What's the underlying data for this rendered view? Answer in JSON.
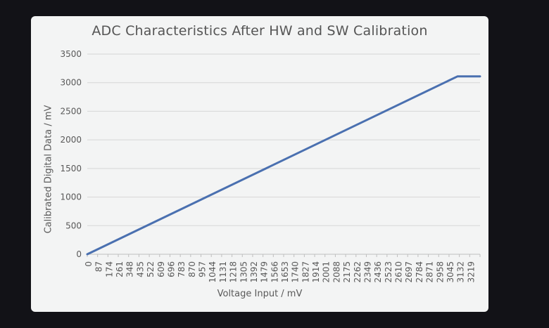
{
  "chart_data": {
    "type": "line",
    "title": "ADC Characteristics After HW and SW Calibration",
    "xlabel": "Voltage Input / mV",
    "ylabel": "Calibrated Digital Data / mV",
    "x_tick_labels": [
      "0",
      "87",
      "174",
      "261",
      "348",
      "435",
      "522",
      "609",
      "696",
      "783",
      "870",
      "957",
      "1044",
      "1131",
      "1218",
      "1305",
      "1392",
      "1479",
      "1566",
      "1653",
      "1740",
      "1827",
      "1914",
      "2001",
      "2088",
      "2175",
      "2262",
      "2349",
      "2436",
      "2523",
      "2610",
      "2697",
      "2784",
      "2871",
      "2958",
      "3045",
      "3132",
      "3219"
    ],
    "y_ticks": [
      0,
      500,
      1000,
      1500,
      2000,
      2500,
      3000,
      3500
    ],
    "xlim": [
      0,
      3300
    ],
    "ylim": [
      0,
      3500
    ],
    "grid": true,
    "series": [
      {
        "color": "#4a70b0",
        "points": [
          [
            0,
            0
          ],
          [
            3110,
            3110
          ],
          [
            3300,
            3110
          ]
        ]
      }
    ]
  }
}
